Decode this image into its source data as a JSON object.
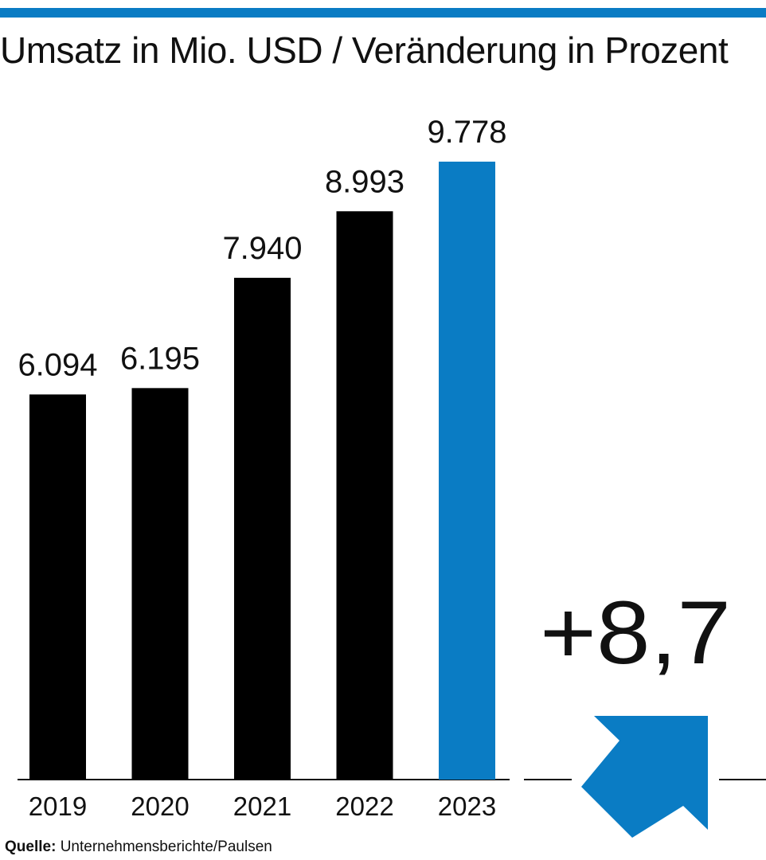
{
  "title": "Umsatz in Mio. USD / Veränderung in Prozent",
  "colors": {
    "accent": "#0a7cc4",
    "bar": "#000000",
    "text": "#111111"
  },
  "chart_data": {
    "type": "bar",
    "title": "Umsatz in Mio. USD / Veränderung in Prozent",
    "categories": [
      "2019",
      "2020",
      "2021",
      "2022",
      "2023"
    ],
    "values": [
      6094,
      6195,
      7940,
      8993,
      9778
    ],
    "value_labels": [
      "6.094",
      "6.195",
      "7.940",
      "8.993",
      "9.778"
    ],
    "highlight_index": 4,
    "ylim": [
      0,
      9778
    ],
    "xlabel": "",
    "ylabel": "",
    "grid": false,
    "change": {
      "label": "+8,7",
      "direction": "up-right-arrow-icon"
    }
  },
  "source": {
    "label": "Quelle:",
    "text": "Unternehmensberichte/Paulsen"
  }
}
